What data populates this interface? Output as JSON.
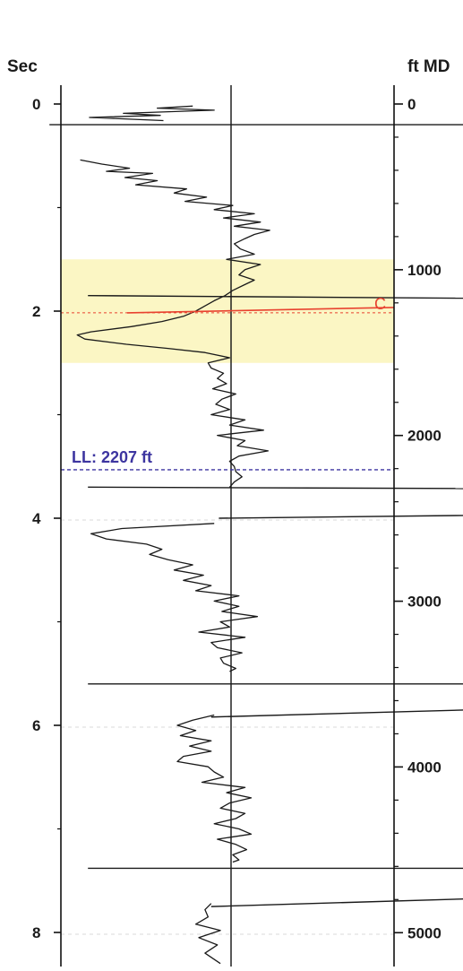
{
  "chart_data": {
    "type": "line",
    "title": "",
    "left_axis": {
      "label": "Sec",
      "range": [
        0,
        8.3
      ],
      "ticks": [
        0,
        2,
        4,
        6,
        8
      ],
      "tick_labels": [
        "0",
        "2",
        "4",
        "6",
        "8"
      ]
    },
    "right_axis": {
      "label": "ft MD",
      "range": [
        0,
        5185
      ],
      "ticks": [
        0,
        1000,
        2000,
        3000,
        4000,
        5000
      ],
      "tick_labels": [
        "0",
        "1000",
        "2000",
        "3000",
        "4000",
        "5000"
      ]
    },
    "highlight_band": {
      "sec_range": [
        1.5,
        2.5
      ],
      "color": "#fbf6c4"
    },
    "annotations": [
      {
        "text": "C",
        "depth_ft": 1260,
        "color": "#e8422f"
      },
      {
        "text": "LL: 2207 ft",
        "depth_ft": 2207,
        "color": "#3d35a0"
      }
    ],
    "trace_points": [
      [
        0.02,
        0.78
      ],
      [
        0.04,
        0.55
      ],
      [
        0.06,
        0.92
      ],
      [
        0.09,
        0.33
      ],
      [
        0.11,
        0.57
      ],
      [
        0.13,
        0.11
      ],
      [
        0.16,
        0.59
      ],
      [
        0.54,
        0.05
      ],
      [
        0.58,
        0.19
      ],
      [
        0.62,
        0.37
      ],
      [
        0.65,
        0.22
      ],
      [
        0.67,
        0.52
      ],
      [
        0.71,
        0.34
      ],
      [
        0.74,
        0.55
      ],
      [
        0.78,
        0.41
      ],
      [
        0.82,
        0.74
      ],
      [
        0.86,
        0.66
      ],
      [
        0.9,
        0.87
      ],
      [
        0.94,
        0.73
      ],
      [
        0.98,
        1.04
      ],
      [
        1.02,
        0.92
      ],
      [
        1.06,
        1.18
      ],
      [
        1.1,
        0.98
      ],
      [
        1.14,
        1.22
      ],
      [
        1.18,
        1.05
      ],
      [
        1.22,
        1.28
      ],
      [
        1.26,
        1.18
      ],
      [
        1.3,
        1.12
      ],
      [
        1.35,
        1.05
      ],
      [
        1.4,
        1.09
      ],
      [
        1.45,
        1.18
      ],
      [
        1.5,
        1.0
      ],
      [
        1.55,
        1.22
      ],
      [
        1.6,
        1.12
      ],
      [
        1.65,
        1.08
      ],
      [
        1.7,
        1.18
      ],
      [
        1.75,
        1.11
      ],
      [
        1.8,
        1.04
      ],
      [
        1.85,
        0.99
      ],
      [
        1.9,
        0.92
      ],
      [
        1.95,
        0.86
      ],
      [
        2.0,
        0.8
      ],
      [
        2.05,
        0.72
      ],
      [
        2.1,
        0.58
      ],
      [
        2.15,
        0.38
      ],
      [
        2.2,
        0.12
      ],
      [
        2.23,
        0.03
      ],
      [
        2.27,
        0.08
      ],
      [
        2.32,
        0.35
      ],
      [
        2.36,
        0.62
      ],
      [
        2.4,
        0.86
      ],
      [
        2.45,
        1.02
      ],
      [
        2.5,
        0.88
      ],
      [
        2.55,
        0.9
      ],
      [
        2.6,
        0.98
      ],
      [
        2.65,
        0.94
      ],
      [
        2.7,
        1.0
      ],
      [
        2.75,
        0.91
      ],
      [
        2.8,
        1.06
      ],
      [
        2.85,
        0.97
      ],
      [
        2.9,
        0.93
      ],
      [
        2.95,
        1.02
      ],
      [
        3.0,
        0.9
      ],
      [
        3.05,
        1.12
      ],
      [
        3.1,
        1.02
      ],
      [
        3.15,
        1.24
      ],
      [
        3.2,
        0.94
      ],
      [
        3.25,
        1.12
      ],
      [
        3.3,
        1.07
      ],
      [
        3.35,
        1.27
      ],
      [
        3.4,
        1.08
      ],
      [
        3.45,
        1.02
      ],
      [
        3.5,
        1.05
      ],
      [
        3.55,
        1.06
      ],
      [
        3.6,
        1.1
      ],
      [
        3.65,
        1.05
      ],
      [
        3.7,
        1.02
      ],
      [
        4.05,
        0.92
      ],
      [
        4.1,
        0.32
      ],
      [
        4.15,
        0.12
      ],
      [
        4.2,
        0.22
      ],
      [
        4.25,
        0.48
      ],
      [
        4.3,
        0.58
      ],
      [
        4.35,
        0.5
      ],
      [
        4.4,
        0.62
      ],
      [
        4.45,
        0.78
      ],
      [
        4.5,
        0.66
      ],
      [
        4.55,
        0.85
      ],
      [
        4.6,
        0.72
      ],
      [
        4.65,
        0.9
      ],
      [
        4.7,
        0.8
      ],
      [
        4.75,
        1.08
      ],
      [
        4.8,
        0.92
      ],
      [
        4.85,
        1.08
      ],
      [
        4.9,
        0.97
      ],
      [
        4.95,
        1.2
      ],
      [
        5.0,
        0.96
      ],
      [
        5.05,
        1.02
      ],
      [
        5.1,
        0.82
      ],
      [
        5.15,
        1.12
      ],
      [
        5.2,
        0.9
      ],
      [
        5.25,
        0.94
      ],
      [
        5.3,
        1.1
      ],
      [
        5.35,
        0.96
      ],
      [
        5.4,
        0.98
      ],
      [
        5.45,
        1.06
      ],
      [
        5.48,
        1.02
      ],
      [
        5.9,
        0.92
      ],
      [
        5.95,
        0.78
      ],
      [
        6.0,
        0.68
      ],
      [
        6.05,
        0.8
      ],
      [
        6.1,
        0.7
      ],
      [
        6.15,
        0.9
      ],
      [
        6.2,
        0.76
      ],
      [
        6.25,
        0.9
      ],
      [
        6.3,
        0.72
      ],
      [
        6.35,
        0.68
      ],
      [
        6.4,
        0.88
      ],
      [
        6.45,
        0.92
      ],
      [
        6.5,
        0.98
      ],
      [
        6.55,
        0.84
      ],
      [
        6.6,
        1.12
      ],
      [
        6.65,
        1.0
      ],
      [
        6.7,
        1.16
      ],
      [
        6.75,
        1.02
      ],
      [
        6.8,
        0.96
      ],
      [
        6.85,
        1.12
      ],
      [
        6.9,
        1.06
      ],
      [
        6.95,
        0.92
      ],
      [
        7.0,
        1.08
      ],
      [
        7.05,
        1.16
      ],
      [
        7.1,
        0.94
      ],
      [
        7.15,
        1.06
      ],
      [
        7.2,
        1.13
      ],
      [
        7.25,
        1.04
      ],
      [
        7.3,
        1.08
      ],
      [
        7.32,
        1.04
      ],
      [
        7.72,
        0.9
      ],
      [
        7.78,
        0.86
      ],
      [
        7.85,
        0.88
      ],
      [
        7.92,
        0.8
      ],
      [
        7.98,
        0.96
      ],
      [
        8.05,
        0.82
      ],
      [
        8.12,
        0.94
      ],
      [
        8.2,
        0.86
      ],
      [
        8.3,
        0.96
      ]
    ],
    "spike_lines": [
      {
        "start_sec": 0.2,
        "end_sec": 0.2,
        "start_amp": -0.15,
        "end_amp": 3.6
      },
      {
        "start_sec": 1.85,
        "end_sec": 1.88,
        "start_amp": 0.1,
        "end_amp": 3.0
      },
      {
        "start_sec": 3.7,
        "end_sec": 3.72,
        "start_amp": 0.1,
        "end_amp": 3.8
      },
      {
        "start_sec": 4.0,
        "end_sec": 3.95,
        "start_amp": 0.95,
        "end_amp": 3.9
      },
      {
        "start_sec": 5.6,
        "end_sec": 5.6,
        "start_amp": 0.1,
        "end_amp": 3.6
      },
      {
        "start_sec": 5.92,
        "end_sec": 5.8,
        "start_amp": 0.9,
        "end_amp": 3.8
      },
      {
        "start_sec": 7.38,
        "end_sec": 7.38,
        "start_amp": 0.1,
        "end_amp": 3.5
      },
      {
        "start_sec": 7.75,
        "end_sec": 7.62,
        "start_amp": 0.9,
        "end_amp": 3.8
      }
    ]
  }
}
